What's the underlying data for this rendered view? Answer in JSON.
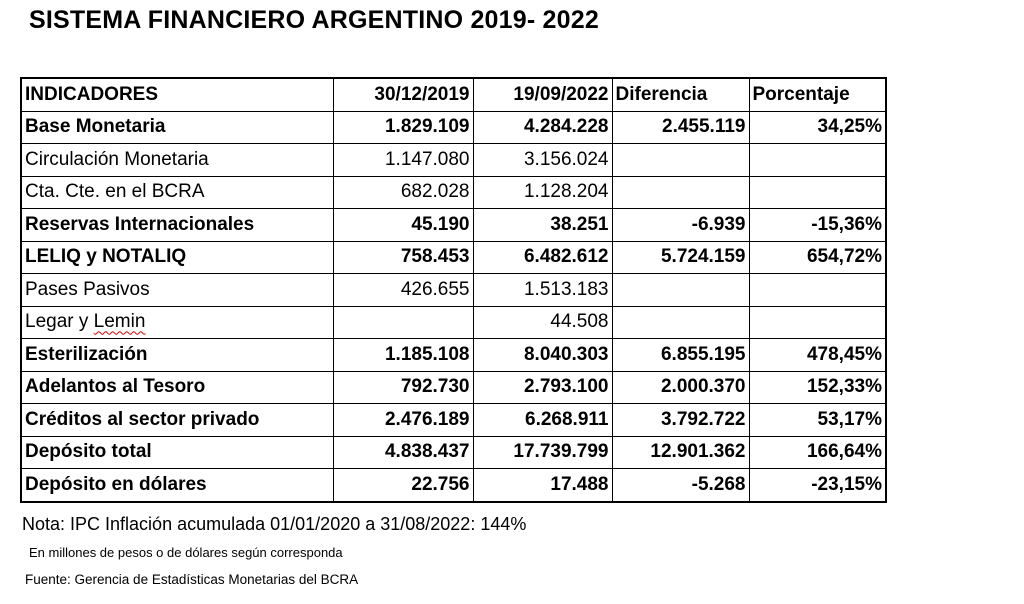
{
  "title": "SISTEMA FINANCIERO ARGENTINO 2019- 2022",
  "table": {
    "headers": [
      "INDICADORES",
      "30/12/2019",
      "19/09/2022",
      "Diferencia",
      "Porcentaje"
    ],
    "rows": [
      {
        "label": "Base Monetaria",
        "v2019": "1.829.109",
        "v2022": "4.284.228",
        "diff": "2.455.119",
        "pct": "34,25%",
        "bold": true
      },
      {
        "label": "Circulación Monetaria",
        "v2019": "1.147.080",
        "v2022": "3.156.024",
        "diff": "",
        "pct": "",
        "bold": false
      },
      {
        "label": "Cta. Cte. en el BCRA",
        "v2019": "682.028",
        "v2022": "1.128.204",
        "diff": "",
        "pct": "",
        "bold": false
      },
      {
        "label": "Reservas Internacionales",
        "v2019": "45.190",
        "v2022": "38.251",
        "diff": "-6.939",
        "pct": "-15,36%",
        "bold": true
      },
      {
        "label": "LELIQ y NOTALIQ",
        "v2019": "758.453",
        "v2022": "6.482.612",
        "diff": "5.724.159",
        "pct": "654,72%",
        "bold": true
      },
      {
        "label": "Pases Pasivos",
        "v2019": "426.655",
        "v2022": "1.513.183",
        "diff": "",
        "pct": "",
        "bold": false
      },
      {
        "label": "Legar y Lemin",
        "v2019": "",
        "v2022": "44.508",
        "diff": "",
        "pct": "",
        "bold": false
      },
      {
        "label": "Esterilización",
        "v2019": "1.185.108",
        "v2022": "8.040.303",
        "diff": "6.855.195",
        "pct": "478,45%",
        "bold": true
      },
      {
        "label": "Adelantos al Tesoro",
        "v2019": "792.730",
        "v2022": "2.793.100",
        "diff": "2.000.370",
        "pct": "152,33%",
        "bold": true
      },
      {
        "label": "Créditos al sector privado",
        "v2019": "2.476.189",
        "v2022": "6.268.911",
        "diff": "3.792.722",
        "pct": "53,17%",
        "bold": true
      },
      {
        "label": "Depósito total",
        "v2019": "4.838.437",
        "v2022": "17.739.799",
        "diff": "12.901.362",
        "pct": "166,64%",
        "bold": true
      },
      {
        "label": "Depósito en dólares",
        "v2019": "22.756",
        "v2022": "17.488",
        "diff": "-5.268",
        "pct": "-23,15%",
        "bold": true
      }
    ]
  },
  "note": "Nota: IPC  Inflación acumulada 01/01/2020 a 31/08/2022:  144%",
  "units": "En millones de pesos o de dólares según corresponda",
  "source": "Fuente: Gerencia de Estadísticas Monetarias del BCRA"
}
